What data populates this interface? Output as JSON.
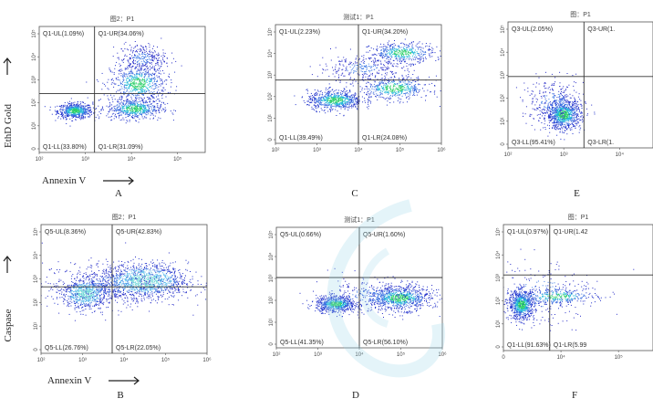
{
  "chart_data": [
    {
      "id": "A",
      "type": "scatter",
      "title": "图2：P1",
      "letter": "A",
      "quadrants": {
        "ul": "Q1-UL(1.09%)",
        "ur": "Q1-UR(34.06%)",
        "ll": "Q1-LL(33.80%)",
        "lr": "Q1-LR(31.09%)"
      },
      "x_ticks": [
        "10²",
        "10³",
        "10⁴",
        "10⁵"
      ],
      "y_ticks": [
        "10⁵",
        "10⁴",
        "10³",
        "10²",
        "10¹",
        "0"
      ],
      "ylabel": "EthD Gold",
      "xlabel": "Annexin V",
      "gate": {
        "x": 3.2,
        "y": 2.8
      },
      "populations": [
        {
          "x": 2.7,
          "y": 2.0,
          "sx": 0.22,
          "sy": 0.18,
          "n": 650,
          "dense": true
        },
        {
          "x": 4.3,
          "y": 3.3,
          "sx": 0.35,
          "sy": 0.45,
          "n": 650,
          "dense": true
        },
        {
          "x": 4.2,
          "y": 2.1,
          "sx": 0.35,
          "sy": 0.25,
          "n": 600,
          "dense": true
        },
        {
          "x": 4.4,
          "y": 4.5,
          "sx": 0.3,
          "sy": 0.35,
          "n": 300,
          "dense": false
        }
      ]
    },
    {
      "id": "C",
      "type": "scatter",
      "title": "测试1：P1",
      "letter": "C",
      "quadrants": {
        "ul": "Q1-UL(2.23%)",
        "ur": "Q1-UR(34.20%)",
        "ll": "Q1-LL(39.49%)",
        "lr": "Q1-LR(24.08%)"
      },
      "x_ticks": [
        "10²",
        "10³",
        "10⁴",
        "10⁵",
        "10⁶"
      ],
      "y_ticks": [
        "10⁵",
        "10⁴",
        "10³",
        "10²",
        "10¹",
        "0"
      ],
      "gate": {
        "x": 3.9,
        "y": 3.2
      },
      "populations": [
        {
          "x": 3.3,
          "y": 2.2,
          "sx": 0.35,
          "sy": 0.25,
          "n": 700,
          "dense": true
        },
        {
          "x": 4.8,
          "y": 2.8,
          "sx": 0.45,
          "sy": 0.3,
          "n": 500,
          "dense": true
        },
        {
          "x": 5.0,
          "y": 4.6,
          "sx": 0.4,
          "sy": 0.25,
          "n": 450,
          "dense": true
        },
        {
          "x": 4.0,
          "y": 3.8,
          "sx": 0.55,
          "sy": 0.35,
          "n": 300,
          "dense": false
        }
      ]
    },
    {
      "id": "E",
      "type": "scatter",
      "title": "图：P1",
      "letter": "E",
      "quadrants": {
        "ul": "Q3-UL(2.05%)",
        "ur": "Q3-UR(1.",
        "ll": "Q3-LL(95.41%)",
        "lr": "Q3-LR(1."
      },
      "x_ticks": [
        "10²",
        "10³",
        "10⁴"
      ],
      "y_ticks": [
        "10⁵",
        "10⁴",
        "10³",
        "10²",
        "10¹",
        "0"
      ],
      "gate": {
        "x": 4.0,
        "y": 3.4
      },
      "populations": [
        {
          "x": 3.4,
          "y": 1.6,
          "sx": 0.25,
          "sy": 0.35,
          "n": 900,
          "dense": true
        },
        {
          "x": 3.1,
          "y": 2.2,
          "sx": 0.45,
          "sy": 0.55,
          "n": 300,
          "dense": false
        }
      ]
    },
    {
      "id": "B",
      "type": "scatter",
      "title": "图2：P1",
      "letter": "B",
      "quadrants": {
        "ul": "Q5-UL(8.36%)",
        "ur": "Q5-UR(42.83%)",
        "ll": "Q5-LL(26.76%)",
        "lr": "Q5-LR(22.05%)"
      },
      "x_ticks": [
        "10²",
        "10³",
        "10⁴",
        "10⁵",
        "10⁶"
      ],
      "y_ticks": [
        "10⁵",
        "10⁴",
        "10³",
        "10²",
        "10¹",
        "0"
      ],
      "ylabel": "Caspase",
      "xlabel": "Annexin V",
      "gate": {
        "x": 3.6,
        "y": 3.1
      },
      "populations": [
        {
          "x": 2.9,
          "y": 2.8,
          "sx": 0.3,
          "sy": 0.35,
          "n": 700,
          "dense": true
        },
        {
          "x": 4.4,
          "y": 3.4,
          "sx": 0.55,
          "sy": 0.4,
          "n": 1100,
          "dense": true
        },
        {
          "x": 3.6,
          "y": 3.2,
          "sx": 0.9,
          "sy": 0.55,
          "n": 500,
          "dense": false
        }
      ]
    },
    {
      "id": "D",
      "type": "scatter",
      "title": "测试1：P1",
      "letter": "D",
      "quadrants": {
        "ul": "Q5-UL(0.66%)",
        "ur": "Q5-UR(1.60%)",
        "ll": "Q5-LL(41.35%)",
        "lr": "Q5-LR(56.10%)"
      },
      "x_ticks": [
        "10²",
        "10³",
        "10⁴",
        "10⁵",
        "10⁶"
      ],
      "y_ticks": [
        "10⁵",
        "10⁴",
        "10³",
        "10²",
        "10¹",
        "0"
      ],
      "gate": {
        "x": 3.9,
        "y": 3.5
      },
      "populations": [
        {
          "x": 3.3,
          "y": 2.2,
          "sx": 0.25,
          "sy": 0.2,
          "n": 700,
          "dense": true
        },
        {
          "x": 4.9,
          "y": 2.5,
          "sx": 0.4,
          "sy": 0.3,
          "n": 800,
          "dense": true
        },
        {
          "x": 4.2,
          "y": 2.6,
          "sx": 0.75,
          "sy": 0.45,
          "n": 300,
          "dense": false
        }
      ]
    },
    {
      "id": "F",
      "type": "scatter",
      "title": "图：P1",
      "letter": "F",
      "quadrants": {
        "ul": "Q1-UL(0.97%)",
        "ur": "Q1-UR(1.42",
        "ll": "Q1-LL(91.63%)",
        "lr": "Q1-LR(5.99"
      },
      "x_ticks": [
        "0",
        "10⁴",
        "10⁵"
      ],
      "y_ticks": [
        "10⁵",
        "10⁴",
        "10³",
        "10²",
        "10¹",
        "0"
      ],
      "gate": {
        "x": 3.1,
        "y": 3.6
      },
      "populations": [
        {
          "x": 2.3,
          "y": 2.2,
          "sx": 0.18,
          "sy": 0.35,
          "n": 800,
          "dense": true
        },
        {
          "x": 3.3,
          "y": 2.6,
          "sx": 0.55,
          "sy": 0.2,
          "n": 350,
          "dense": true
        },
        {
          "x": 2.8,
          "y": 2.8,
          "sx": 0.8,
          "sy": 0.9,
          "n": 200,
          "dense": false
        }
      ]
    }
  ]
}
